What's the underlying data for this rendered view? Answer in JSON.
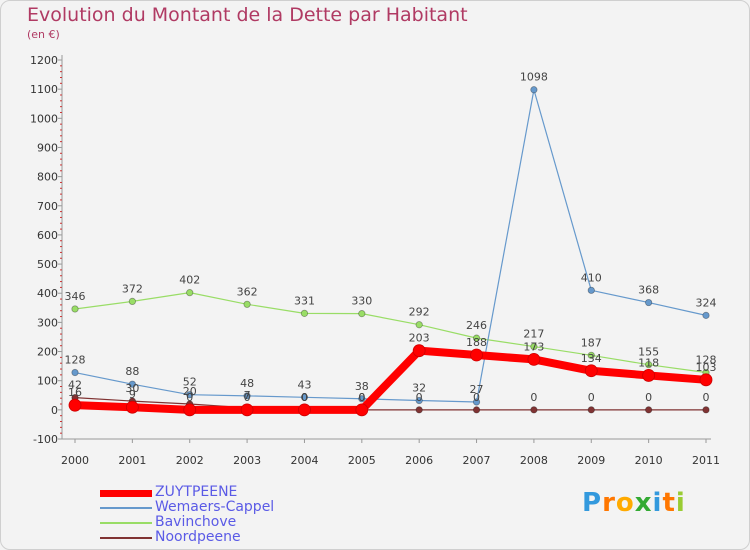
{
  "header": {
    "title": "Evolution du Montant de la Dette par Habitant",
    "subtitle": "(en €)"
  },
  "chart_data": {
    "type": "line",
    "x": [
      "2000",
      "2001",
      "2002",
      "2003",
      "2004",
      "2005",
      "2006",
      "2007",
      "2008",
      "2009",
      "2010",
      "2011"
    ],
    "ylim": [
      -100,
      1200
    ],
    "yticks": [
      -100,
      0,
      100,
      200,
      300,
      400,
      500,
      600,
      700,
      800,
      900,
      1000,
      1100,
      1200
    ],
    "grid": false,
    "legend": "bottom-left",
    "series": [
      {
        "name": "ZUYTPEENE",
        "color": "#ff0000",
        "values": [
          16,
          9,
          0,
          0,
          0,
          0,
          203,
          188,
          173,
          134,
          118,
          103
        ],
        "labels": [
          "16",
          "9",
          "0",
          "0",
          "0",
          "0",
          "203",
          "188",
          "173",
          "134",
          "118",
          "103"
        ]
      },
      {
        "name": "Wemaers-Cappel",
        "color": "#6699cc",
        "values": [
          128,
          88,
          52,
          48,
          43,
          38,
          32,
          27,
          1098,
          410,
          368,
          324
        ],
        "labels": [
          "128",
          "88",
          "52",
          "48",
          "43",
          "38",
          "32",
          "27",
          "1098",
          "410",
          "368",
          "324"
        ]
      },
      {
        "name": "Bavinchove",
        "color": "#99dd66",
        "values": [
          346,
          372,
          402,
          362,
          331,
          330,
          292,
          246,
          217,
          187,
          155,
          128
        ],
        "labels": [
          "346",
          "372",
          "402",
          "362",
          "331",
          "330",
          "292",
          "246",
          "217",
          "187",
          "155",
          "128"
        ]
      },
      {
        "name": "Noordpeene",
        "color": "#803333",
        "values": [
          42,
          30,
          20,
          7,
          0,
          0,
          0,
          0,
          0,
          0,
          0,
          0
        ],
        "labels": [
          "42",
          "30",
          "20",
          "7",
          "0",
          "0",
          "0",
          "0",
          "0",
          "0",
          "0",
          "0"
        ]
      }
    ]
  },
  "logo": {
    "letters": [
      "P",
      "r",
      "o",
      "x",
      "i",
      "t",
      "i"
    ],
    "colors": [
      "#3399dd",
      "#ff7700",
      "#ffaa00",
      "#33aa33",
      "#3399dd",
      "#ff7700",
      "#99cc33"
    ]
  }
}
